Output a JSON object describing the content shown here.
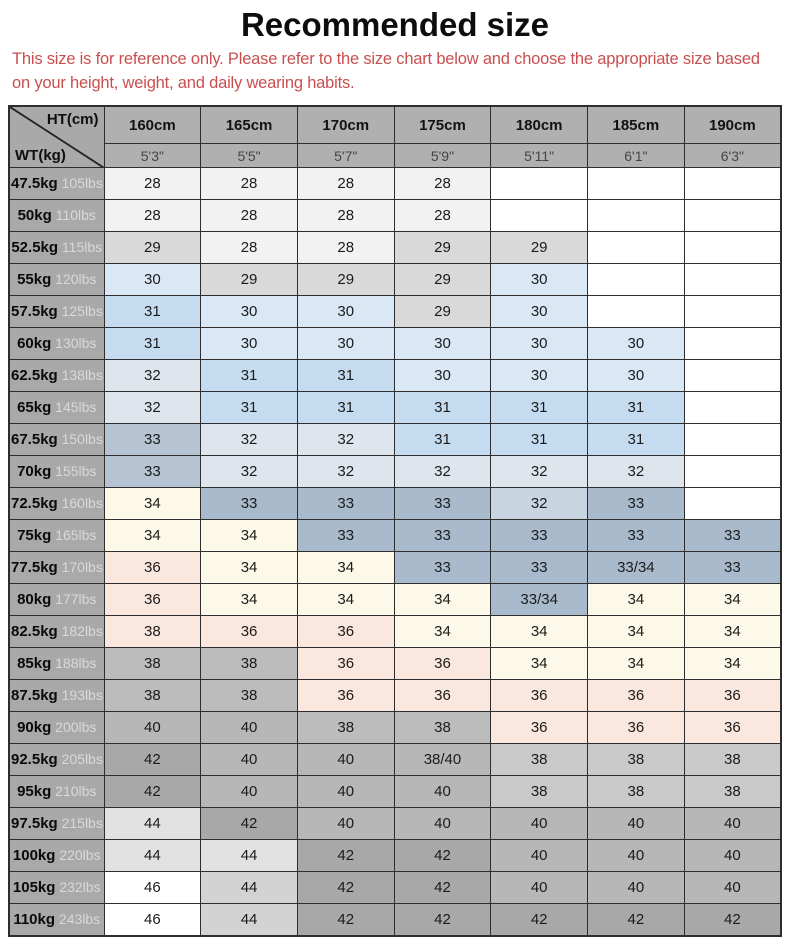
{
  "page": {
    "title": "Recommended size",
    "disclaimer": "This size is for reference only. Please refer to the size chart below and choose the appropriate size based on your height, weight, and daily wearing habits."
  },
  "colors": {
    "disclaimer_text": "#c94f4f",
    "header_bg": "#b0b0b0",
    "label_bg": "#a9a9a9",
    "border": "#2e2e2e",
    "lbs_text": "#d9d9d9",
    "palette": {
      "wht": "#ffffff",
      "nw": "#f2f2f2",
      "lg": "#d9d9d9",
      "lb": "#dae8f5",
      "mb": "#c5dcf0",
      "lbg": "#dfe5ec",
      "mbg": "#b5c3d3",
      "bg": "#a9bacd",
      "lbg2": "#c9d4e1",
      "cr": "#fdf9e8",
      "pk": "#fae7de",
      "g38a": "#bcbcbc",
      "g38b": "#c9c9c9",
      "g40": "#b7b7b7",
      "g42": "#a8a8a8",
      "g44a": "#e1e1e1",
      "g44b": "#d3d3d3"
    }
  },
  "table": {
    "corner": {
      "top_right": "HT(cm)",
      "bottom_left": "WT(kg)"
    },
    "columns": [
      {
        "cm": "160cm",
        "ft": "5'3\""
      },
      {
        "cm": "165cm",
        "ft": "5'5\""
      },
      {
        "cm": "170cm",
        "ft": "5'7\""
      },
      {
        "cm": "175cm",
        "ft": "5'9\""
      },
      {
        "cm": "180cm",
        "ft": "5'11\""
      },
      {
        "cm": "185cm",
        "ft": "6'1\""
      },
      {
        "cm": "190cm",
        "ft": "6'3\""
      }
    ],
    "rows": [
      {
        "kg": "47.5kg",
        "lbs": "105lbs",
        "cells": [
          {
            "v": "28",
            "c": "nw"
          },
          {
            "v": "28",
            "c": "nw"
          },
          {
            "v": "28",
            "c": "nw"
          },
          {
            "v": "28",
            "c": "nw"
          },
          {
            "v": "",
            "c": "wht"
          },
          {
            "v": "",
            "c": "wht"
          },
          {
            "v": "",
            "c": "wht"
          }
        ]
      },
      {
        "kg": "50kg",
        "lbs": "110lbs",
        "cells": [
          {
            "v": "28",
            "c": "nw"
          },
          {
            "v": "28",
            "c": "nw"
          },
          {
            "v": "28",
            "c": "nw"
          },
          {
            "v": "28",
            "c": "nw"
          },
          {
            "v": "",
            "c": "wht"
          },
          {
            "v": "",
            "c": "wht"
          },
          {
            "v": "",
            "c": "wht"
          }
        ]
      },
      {
        "kg": "52.5kg",
        "lbs": "115lbs",
        "cells": [
          {
            "v": "29",
            "c": "lg"
          },
          {
            "v": "28",
            "c": "nw"
          },
          {
            "v": "28",
            "c": "nw"
          },
          {
            "v": "29",
            "c": "lg"
          },
          {
            "v": "29",
            "c": "lg"
          },
          {
            "v": "",
            "c": "wht"
          },
          {
            "v": "",
            "c": "wht"
          }
        ]
      },
      {
        "kg": "55kg",
        "lbs": "120lbs",
        "cells": [
          {
            "v": "30",
            "c": "lb"
          },
          {
            "v": "29",
            "c": "lg"
          },
          {
            "v": "29",
            "c": "lg"
          },
          {
            "v": "29",
            "c": "lg"
          },
          {
            "v": "30",
            "c": "lb"
          },
          {
            "v": "",
            "c": "wht"
          },
          {
            "v": "",
            "c": "wht"
          }
        ]
      },
      {
        "kg": "57.5kg",
        "lbs": "125lbs",
        "cells": [
          {
            "v": "31",
            "c": "mb"
          },
          {
            "v": "30",
            "c": "lb"
          },
          {
            "v": "30",
            "c": "lb"
          },
          {
            "v": "29",
            "c": "lg"
          },
          {
            "v": "30",
            "c": "lb"
          },
          {
            "v": "",
            "c": "wht"
          },
          {
            "v": "",
            "c": "wht"
          }
        ]
      },
      {
        "kg": "60kg",
        "lbs": "130lbs",
        "cells": [
          {
            "v": "31",
            "c": "mb"
          },
          {
            "v": "30",
            "c": "lb"
          },
          {
            "v": "30",
            "c": "lb"
          },
          {
            "v": "30",
            "c": "lb"
          },
          {
            "v": "30",
            "c": "lb"
          },
          {
            "v": "30",
            "c": "lb"
          },
          {
            "v": "",
            "c": "wht"
          }
        ]
      },
      {
        "kg": "62.5kg",
        "lbs": "138lbs",
        "cells": [
          {
            "v": "32",
            "c": "lbg"
          },
          {
            "v": "31",
            "c": "mb"
          },
          {
            "v": "31",
            "c": "mb"
          },
          {
            "v": "30",
            "c": "lb"
          },
          {
            "v": "30",
            "c": "lb"
          },
          {
            "v": "30",
            "c": "lb"
          },
          {
            "v": "",
            "c": "wht"
          }
        ]
      },
      {
        "kg": "65kg",
        "lbs": "145lbs",
        "cells": [
          {
            "v": "32",
            "c": "lbg"
          },
          {
            "v": "31",
            "c": "mb"
          },
          {
            "v": "31",
            "c": "mb"
          },
          {
            "v": "31",
            "c": "mb"
          },
          {
            "v": "31",
            "c": "mb"
          },
          {
            "v": "31",
            "c": "mb"
          },
          {
            "v": "",
            "c": "wht"
          }
        ]
      },
      {
        "kg": "67.5kg",
        "lbs": "150lbs",
        "cells": [
          {
            "v": "33",
            "c": "mbg"
          },
          {
            "v": "32",
            "c": "lbg"
          },
          {
            "v": "32",
            "c": "lbg"
          },
          {
            "v": "31",
            "c": "mb"
          },
          {
            "v": "31",
            "c": "mb"
          },
          {
            "v": "31",
            "c": "mb"
          },
          {
            "v": "",
            "c": "wht"
          }
        ]
      },
      {
        "kg": "70kg",
        "lbs": "155lbs",
        "cells": [
          {
            "v": "33",
            "c": "mbg"
          },
          {
            "v": "32",
            "c": "lbg"
          },
          {
            "v": "32",
            "c": "lbg"
          },
          {
            "v": "32",
            "c": "lbg"
          },
          {
            "v": "32",
            "c": "lbg"
          },
          {
            "v": "32",
            "c": "lbg"
          },
          {
            "v": "",
            "c": "wht"
          }
        ]
      },
      {
        "kg": "72.5kg",
        "lbs": "160lbs",
        "cells": [
          {
            "v": "34",
            "c": "cr"
          },
          {
            "v": "33",
            "c": "bg"
          },
          {
            "v": "33",
            "c": "bg"
          },
          {
            "v": "33",
            "c": "bg"
          },
          {
            "v": "32",
            "c": "lbg2"
          },
          {
            "v": "33",
            "c": "bg"
          },
          {
            "v": "",
            "c": "wht"
          }
        ]
      },
      {
        "kg": "75kg",
        "lbs": "165lbs",
        "cells": [
          {
            "v": "34",
            "c": "cr"
          },
          {
            "v": "34",
            "c": "cr"
          },
          {
            "v": "33",
            "c": "bg"
          },
          {
            "v": "33",
            "c": "bg"
          },
          {
            "v": "33",
            "c": "bg"
          },
          {
            "v": "33",
            "c": "bg"
          },
          {
            "v": "33",
            "c": "bg"
          }
        ]
      },
      {
        "kg": "77.5kg",
        "lbs": "170lbs",
        "cells": [
          {
            "v": "36",
            "c": "pk"
          },
          {
            "v": "34",
            "c": "cr"
          },
          {
            "v": "34",
            "c": "cr"
          },
          {
            "v": "33",
            "c": "bg"
          },
          {
            "v": "33",
            "c": "bg"
          },
          {
            "v": "33/34",
            "c": "bg"
          },
          {
            "v": "33",
            "c": "bg"
          }
        ]
      },
      {
        "kg": "80kg",
        "lbs": "177lbs",
        "cells": [
          {
            "v": "36",
            "c": "pk"
          },
          {
            "v": "34",
            "c": "cr"
          },
          {
            "v": "34",
            "c": "cr"
          },
          {
            "v": "34",
            "c": "cr"
          },
          {
            "v": "33/34",
            "c": "bg"
          },
          {
            "v": "34",
            "c": "cr"
          },
          {
            "v": "34",
            "c": "cr"
          }
        ]
      },
      {
        "kg": "82.5kg",
        "lbs": "182lbs",
        "cells": [
          {
            "v": "38",
            "c": "pk"
          },
          {
            "v": "36",
            "c": "pk"
          },
          {
            "v": "36",
            "c": "pk"
          },
          {
            "v": "34",
            "c": "cr"
          },
          {
            "v": "34",
            "c": "cr"
          },
          {
            "v": "34",
            "c": "cr"
          },
          {
            "v": "34",
            "c": "cr"
          }
        ]
      },
      {
        "kg": "85kg",
        "lbs": "188lbs",
        "cells": [
          {
            "v": "38",
            "c": "g38a"
          },
          {
            "v": "38",
            "c": "g38a"
          },
          {
            "v": "36",
            "c": "pk"
          },
          {
            "v": "36",
            "c": "pk"
          },
          {
            "v": "34",
            "c": "cr"
          },
          {
            "v": "34",
            "c": "cr"
          },
          {
            "v": "34",
            "c": "cr"
          }
        ]
      },
      {
        "kg": "87.5kg",
        "lbs": "193lbs",
        "cells": [
          {
            "v": "38",
            "c": "g38a"
          },
          {
            "v": "38",
            "c": "g38a"
          },
          {
            "v": "36",
            "c": "pk"
          },
          {
            "v": "36",
            "c": "pk"
          },
          {
            "v": "36",
            "c": "pk"
          },
          {
            "v": "36",
            "c": "pk"
          },
          {
            "v": "36",
            "c": "pk"
          }
        ]
      },
      {
        "kg": "90kg",
        "lbs": "200lbs",
        "cells": [
          {
            "v": "40",
            "c": "g40"
          },
          {
            "v": "40",
            "c": "g40"
          },
          {
            "v": "38",
            "c": "g38a"
          },
          {
            "v": "38",
            "c": "g38a"
          },
          {
            "v": "36",
            "c": "pk"
          },
          {
            "v": "36",
            "c": "pk"
          },
          {
            "v": "36",
            "c": "pk"
          }
        ]
      },
      {
        "kg": "92.5kg",
        "lbs": "205lbs",
        "cells": [
          {
            "v": "42",
            "c": "g42"
          },
          {
            "v": "40",
            "c": "g40"
          },
          {
            "v": "40",
            "c": "g40"
          },
          {
            "v": "38/40",
            "c": "g40"
          },
          {
            "v": "38",
            "c": "g38b"
          },
          {
            "v": "38",
            "c": "g38b"
          },
          {
            "v": "38",
            "c": "g38b"
          }
        ]
      },
      {
        "kg": "95kg",
        "lbs": "210lbs",
        "cells": [
          {
            "v": "42",
            "c": "g42"
          },
          {
            "v": "40",
            "c": "g40"
          },
          {
            "v": "40",
            "c": "g40"
          },
          {
            "v": "40",
            "c": "g40"
          },
          {
            "v": "38",
            "c": "g38b"
          },
          {
            "v": "38",
            "c": "g38b"
          },
          {
            "v": "38",
            "c": "g38b"
          }
        ]
      },
      {
        "kg": "97.5kg",
        "lbs": "215lbs",
        "cells": [
          {
            "v": "44",
            "c": "g44a"
          },
          {
            "v": "42",
            "c": "g42"
          },
          {
            "v": "40",
            "c": "g40"
          },
          {
            "v": "40",
            "c": "g40"
          },
          {
            "v": "40",
            "c": "g40"
          },
          {
            "v": "40",
            "c": "g40"
          },
          {
            "v": "40",
            "c": "g40"
          }
        ]
      },
      {
        "kg": "100kg",
        "lbs": "220lbs",
        "cells": [
          {
            "v": "44",
            "c": "g44a"
          },
          {
            "v": "44",
            "c": "g44a"
          },
          {
            "v": "42",
            "c": "g42"
          },
          {
            "v": "42",
            "c": "g42"
          },
          {
            "v": "40",
            "c": "g40"
          },
          {
            "v": "40",
            "c": "g40"
          },
          {
            "v": "40",
            "c": "g40"
          }
        ]
      },
      {
        "kg": "105kg",
        "lbs": "232lbs",
        "cells": [
          {
            "v": "46",
            "c": "wht"
          },
          {
            "v": "44",
            "c": "g44b"
          },
          {
            "v": "42",
            "c": "g42"
          },
          {
            "v": "42",
            "c": "g42"
          },
          {
            "v": "40",
            "c": "g40"
          },
          {
            "v": "40",
            "c": "g40"
          },
          {
            "v": "40",
            "c": "g40"
          }
        ]
      },
      {
        "kg": "110kg",
        "lbs": "243lbs",
        "cells": [
          {
            "v": "46",
            "c": "wht"
          },
          {
            "v": "44",
            "c": "g44b"
          },
          {
            "v": "42",
            "c": "g42"
          },
          {
            "v": "42",
            "c": "g42"
          },
          {
            "v": "42",
            "c": "g42"
          },
          {
            "v": "42",
            "c": "g42"
          },
          {
            "v": "42",
            "c": "g42"
          }
        ]
      }
    ]
  }
}
